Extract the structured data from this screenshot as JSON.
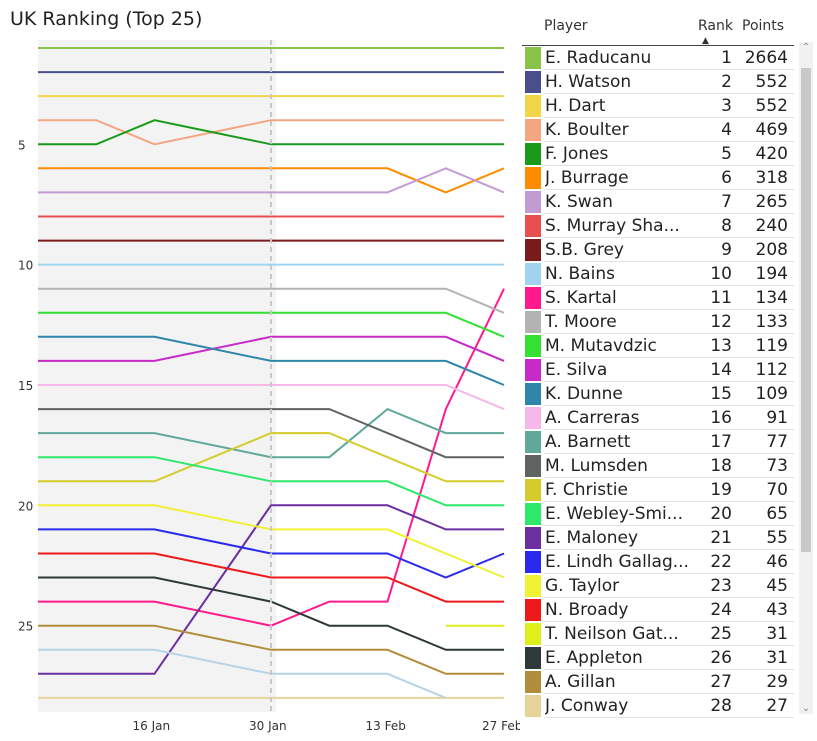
{
  "title": "UK Ranking (Top 25)",
  "table": {
    "headers": {
      "sort": ".",
      "player": "Player",
      "rank": "Rank",
      "points": "Points"
    },
    "rows": [
      {
        "player": "E. Raducanu",
        "rank": "1",
        "points": "2664",
        "color": "#8bc34a"
      },
      {
        "player": "H. Watson",
        "rank": "2",
        "points": "552",
        "color": "#4a4f8c"
      },
      {
        "player": "H. Dart",
        "rank": "3",
        "points": "552",
        "color": "#f3d54a"
      },
      {
        "player": "K. Boulter",
        "rank": "4",
        "points": "469",
        "color": "#f4a582"
      },
      {
        "player": "F. Jones",
        "rank": "5",
        "points": "420",
        "color": "#1a9a1a"
      },
      {
        "player": "J. Burrage",
        "rank": "6",
        "points": "318",
        "color": "#ff8c00"
      },
      {
        "player": "K. Swan",
        "rank": "7",
        "points": "265",
        "color": "#c39bd3"
      },
      {
        "player": "S. Murray Sha...",
        "rank": "8",
        "points": "240",
        "color": "#e8504f"
      },
      {
        "player": "S.B. Grey",
        "rank": "9",
        "points": "208",
        "color": "#7b1a1a"
      },
      {
        "player": "N. Bains",
        "rank": "10",
        "points": "194",
        "color": "#9fd3f0"
      },
      {
        "player": "S. Kartal",
        "rank": "11",
        "points": "134",
        "color": "#ff1a8c"
      },
      {
        "player": "T. Moore",
        "rank": "12",
        "points": "133",
        "color": "#b3b3b3"
      },
      {
        "player": "M. Mutavdzic",
        "rank": "13",
        "points": "119",
        "color": "#33e033"
      },
      {
        "player": "E. Silva",
        "rank": "14",
        "points": "112",
        "color": "#c72ac7"
      },
      {
        "player": "K. Dunne",
        "rank": "15",
        "points": "109",
        "color": "#2e86ab"
      },
      {
        "player": "A. Carreras",
        "rank": "16",
        "points": "91",
        "color": "#f5b8e8"
      },
      {
        "player": "A. Barnett",
        "rank": "17",
        "points": "77",
        "color": "#5fa89a"
      },
      {
        "player": "M. Lumsden",
        "rank": "18",
        "points": "73",
        "color": "#5f6462"
      },
      {
        "player": "F. Christie",
        "rank": "19",
        "points": "70",
        "color": "#d4cc2a"
      },
      {
        "player": "E. Webley-Smi...",
        "rank": "20",
        "points": "65",
        "color": "#2ee86a"
      },
      {
        "player": "E. Maloney",
        "rank": "21",
        "points": "55",
        "color": "#6a2fa0"
      },
      {
        "player": "E. Lindh Gallag...",
        "rank": "22",
        "points": "46",
        "color": "#2a2aee"
      },
      {
        "player": "G. Taylor",
        "rank": "23",
        "points": "45",
        "color": "#f0f034"
      },
      {
        "player": "N. Broady",
        "rank": "24",
        "points": "43",
        "color": "#ee1a1a"
      },
      {
        "player": "T. Neilson Gat...",
        "rank": "25",
        "points": "31",
        "color": "#dfef1a"
      },
      {
        "player": "E. Appleton",
        "rank": "26",
        "points": "31",
        "color": "#2e3a3a"
      },
      {
        "player": "A. Gillan",
        "rank": "27",
        "points": "29",
        "color": "#b08d3a"
      },
      {
        "player": "J. Conway",
        "rank": "28",
        "points": "27",
        "color": "#e6d39a"
      }
    ]
  },
  "chart_data": {
    "type": "line",
    "title": "UK Ranking (Top 25)",
    "xlabel": "",
    "ylabel": "",
    "x_ticks": [
      "16 Jan",
      "30 Jan",
      "13 Feb",
      "27 Feb"
    ],
    "y_ticks": [
      5,
      10,
      15,
      20,
      25
    ],
    "y_inverted": true,
    "ylim": [
      1,
      28
    ],
    "marker_line": "30 Jan",
    "x": [
      "2 Jan",
      "9 Jan",
      "16 Jan",
      "23 Jan",
      "30 Jan",
      "6 Feb",
      "13 Feb",
      "20 Feb",
      "27 Feb"
    ],
    "series": [
      {
        "name": "E. Raducanu",
        "color": "#8bc34a",
        "values": [
          1,
          1,
          1,
          1,
          1,
          1,
          1,
          1,
          1
        ]
      },
      {
        "name": "H. Watson",
        "color": "#4a4f8c",
        "values": [
          2,
          2,
          2,
          2,
          2,
          2,
          2,
          2,
          2
        ]
      },
      {
        "name": "H. Dart",
        "color": "#f3d54a",
        "values": [
          3,
          3,
          3,
          3,
          3,
          3,
          3,
          3,
          3
        ]
      },
      {
        "name": "K. Boulter",
        "color": "#f4a582",
        "values": [
          4,
          4,
          5,
          null,
          4,
          4,
          4,
          4,
          4
        ]
      },
      {
        "name": "F. Jones",
        "color": "#1a9a1a",
        "values": [
          5,
          5,
          4,
          null,
          5,
          5,
          5,
          5,
          5
        ]
      },
      {
        "name": "J. Burrage",
        "color": "#ff8c00",
        "values": [
          6,
          6,
          6,
          6,
          6,
          6,
          6,
          7,
          6
        ]
      },
      {
        "name": "K. Swan",
        "color": "#c39bd3",
        "values": [
          7,
          7,
          7,
          7,
          7,
          7,
          7,
          6,
          7
        ]
      },
      {
        "name": "S. Murray Sha...",
        "color": "#e8504f",
        "values": [
          8,
          8,
          8,
          8,
          8,
          8,
          8,
          8,
          8
        ]
      },
      {
        "name": "S.B. Grey",
        "color": "#7b1a1a",
        "values": [
          9,
          9,
          9,
          9,
          9,
          9,
          9,
          9,
          9
        ]
      },
      {
        "name": "N. Bains",
        "color": "#9fd3f0",
        "values": [
          10,
          10,
          10,
          10,
          10,
          10,
          10,
          10,
          10
        ]
      },
      {
        "name": "S. Kartal",
        "color": "#ff1a8c",
        "values": [
          24,
          24,
          24,
          null,
          25,
          24,
          24,
          16,
          11
        ]
      },
      {
        "name": "T. Moore",
        "color": "#b3b3b3",
        "values": [
          11,
          11,
          11,
          11,
          11,
          11,
          11,
          11,
          12
        ]
      },
      {
        "name": "M. Mutavdzic",
        "color": "#33e033",
        "values": [
          12,
          12,
          12,
          12,
          12,
          12,
          12,
          12,
          13
        ]
      },
      {
        "name": "E. Silva",
        "color": "#c72ac7",
        "values": [
          14,
          14,
          14,
          null,
          13,
          13,
          13,
          13,
          14
        ]
      },
      {
        "name": "K. Dunne",
        "color": "#2e86ab",
        "values": [
          13,
          13,
          13,
          null,
          14,
          14,
          14,
          14,
          15
        ]
      },
      {
        "name": "A. Carreras",
        "color": "#f5b8e8",
        "values": [
          15,
          15,
          15,
          15,
          15,
          15,
          15,
          15,
          16
        ]
      },
      {
        "name": "A. Barnett",
        "color": "#5fa89a",
        "values": [
          17,
          17,
          17,
          null,
          18,
          18,
          16,
          17,
          17
        ]
      },
      {
        "name": "M. Lumsden",
        "color": "#5f6462",
        "values": [
          16,
          16,
          16,
          16,
          16,
          16,
          17,
          18,
          18
        ]
      },
      {
        "name": "F. Christie",
        "color": "#d4cc2a",
        "values": [
          19,
          19,
          19,
          null,
          17,
          17,
          18,
          19,
          19
        ]
      },
      {
        "name": "E. Webley-Smi...",
        "color": "#2ee86a",
        "values": [
          18,
          18,
          18,
          null,
          19,
          19,
          19,
          20,
          20
        ]
      },
      {
        "name": "E. Maloney",
        "color": "#6a2fa0",
        "values": [
          27,
          27,
          27,
          null,
          20,
          20,
          20,
          21,
          21
        ]
      },
      {
        "name": "E. Lindh Gallag...",
        "color": "#2a2aee",
        "values": [
          21,
          21,
          21,
          null,
          22,
          22,
          22,
          23,
          22
        ]
      },
      {
        "name": "G. Taylor",
        "color": "#f0f034",
        "values": [
          20,
          20,
          20,
          null,
          21,
          21,
          21,
          22,
          23
        ]
      },
      {
        "name": "N. Broady",
        "color": "#ee1a1a",
        "values": [
          22,
          22,
          22,
          null,
          23,
          23,
          23,
          24,
          24
        ]
      },
      {
        "name": "T. Neilson Gat...",
        "color": "#dfef1a",
        "values": [
          null,
          null,
          null,
          null,
          null,
          null,
          null,
          25,
          25
        ]
      },
      {
        "name": "E. Appleton",
        "color": "#2e3a3a",
        "values": [
          23,
          23,
          23,
          null,
          24,
          25,
          25,
          26,
          26
        ]
      },
      {
        "name": "A. Gillan",
        "color": "#b08d3a",
        "values": [
          25,
          25,
          25,
          null,
          26,
          26,
          26,
          27,
          27
        ]
      },
      {
        "name": "J. Conway",
        "color": "#e6d39a",
        "values": [
          28,
          28,
          28,
          28,
          28,
          28,
          28,
          null,
          28
        ]
      },
      {
        "name": "",
        "color": "#b7d4e6",
        "values": [
          26,
          26,
          26,
          null,
          27,
          27,
          27,
          28,
          null
        ]
      }
    ]
  }
}
